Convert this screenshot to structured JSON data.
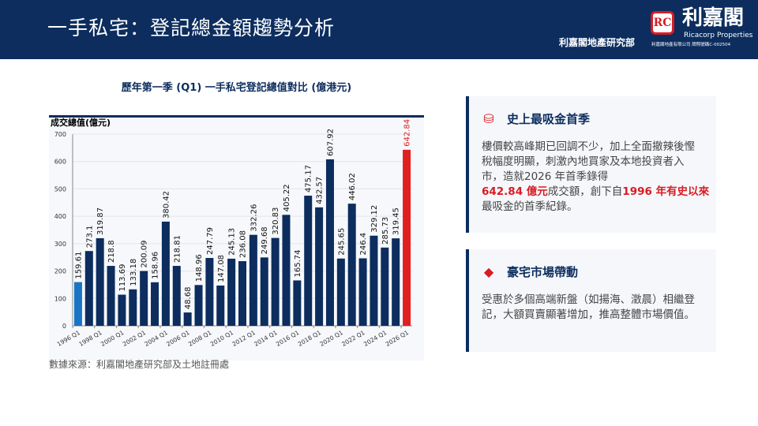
{
  "header": {
    "title": "一手私宅：登記總金額趨勢分析",
    "dept": "利嘉閣地產研究部",
    "logo_mark": "RC",
    "logo_cn": "利嘉閣",
    "logo_en": "Ricacorp Properties",
    "logo_license": "利嘉閣地產有限公司 牌照號碼C-002504"
  },
  "chart_data": {
    "type": "bar",
    "title": "歷年第一季 (Q1) 一手私宅登記總值對比 (億港元)",
    "ylabel": "成交總值(億元)",
    "ylim": [
      0,
      700
    ],
    "yticks": [
      0,
      100,
      200,
      300,
      400,
      500,
      600,
      700
    ],
    "grid": true,
    "categories": [
      "1996 Q1",
      "1997 Q1",
      "1998 Q1",
      "1999 Q1",
      "2000 Q1",
      "2001 Q1",
      "2002 Q1",
      "2003 Q1",
      "2004 Q1",
      "2005 Q1",
      "2006 Q1",
      "2007 Q1",
      "2008 Q1",
      "2009 Q1",
      "2010 Q1",
      "2011 Q1",
      "2012 Q1",
      "2013 Q1",
      "2014 Q1",
      "2015 Q1",
      "2016 Q1",
      "2017 Q1",
      "2018 Q1",
      "2019 Q1",
      "2020 Q1",
      "2021 Q1",
      "2022 Q1",
      "2023 Q1",
      "2024 Q1",
      "2025 Q1",
      "2026 Q1"
    ],
    "xtick_labels": [
      "1996 Q1",
      "1998 Q1",
      "2000 Q1",
      "2002 Q1",
      "2004 Q1",
      "2006 Q1",
      "2008 Q1",
      "2010 Q1",
      "2012 Q1",
      "2014 Q1",
      "2016 Q1",
      "2018 Q1",
      "2020 Q1",
      "2022 Q1",
      "2024 Q1",
      "2026 Q1"
    ],
    "values": [
      159.61,
      273.1,
      319.87,
      218.8,
      113.69,
      133.18,
      200.09,
      158.96,
      380.42,
      218.81,
      48.68,
      148.96,
      247.79,
      147.08,
      245.13,
      236.08,
      332.26,
      249.68,
      320.83,
      405.22,
      165.74,
      475.17,
      432.57,
      607.92,
      245.65,
      446.02,
      246.4,
      329.12,
      285.73,
      319.45,
      642.84
    ],
    "colors": {
      "default": "#0c2d5e",
      "first": "#1a74c4",
      "latest": "#e0201f"
    }
  },
  "source": "數據來源：利嘉閣地產研究部及土地註冊處",
  "panels": [
    {
      "icon": "coins-icon",
      "title": "史上最吸金首季",
      "t1": "樓價較高峰期已回調不少，加上全面撤辣後慳稅幅度明顯，刺激內地買家及本地投資者入市，造就2026 年首季錄得",
      "h1": "642.84 億元",
      "t2": "成交額，創下自",
      "h2": "1996 年有史以來",
      "t3": "最吸金的首季紀錄。"
    },
    {
      "icon": "gem-icon",
      "title": "豪宅市場帶動",
      "t1": "受惠於多個高端新盤（如揚海、澂晨）相繼登記，大額買賣顯著增加，推高整體市場價值。"
    }
  ]
}
